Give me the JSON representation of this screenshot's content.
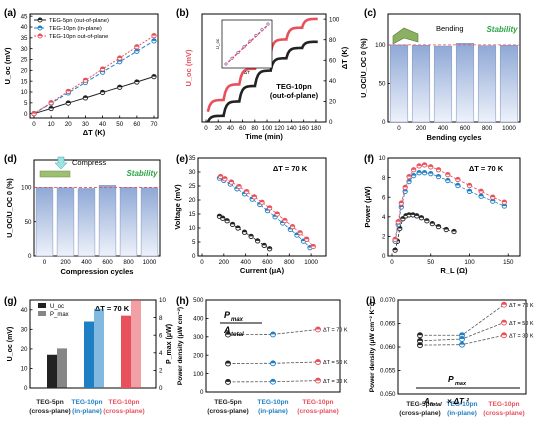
{
  "colors": {
    "black": "#222222",
    "blue": "#1f7fc4",
    "red": "#e8505b",
    "grey": "#bdbdbd",
    "bar_top": "#8fa8d6",
    "bar_bot": "#eef2fa",
    "area": "#dcdcdc"
  },
  "chart_data": [
    {
      "panel": "(a)",
      "type": "line",
      "xlabel": "ΔT (K)",
      "ylabel": "U_oc (mV)",
      "xlim": [
        0,
        70
      ],
      "ylim": [
        -2,
        46
      ],
      "xticks": [
        0,
        10,
        20,
        30,
        40,
        50,
        60,
        70
      ],
      "yticks": [
        0,
        5,
        10,
        15,
        20,
        25,
        30,
        35,
        40,
        45
      ],
      "series": [
        {
          "name": "TEG-5pn (out-of-plane)",
          "x": [
            0,
            5,
            10,
            15,
            20,
            25,
            30,
            35,
            40,
            45,
            50,
            55,
            60,
            65,
            70
          ],
          "values": [
            0,
            1.2,
            2.4,
            3.7,
            4.9,
            6.1,
            7.3,
            8.5,
            9.8,
            11,
            12.2,
            13.4,
            14.6,
            15.9,
            17.1
          ]
        },
        {
          "name": "TEG-10pn (in-plane)",
          "x": [
            0,
            5,
            10,
            15,
            20,
            25,
            30,
            35,
            40,
            45,
            50,
            55,
            60,
            65,
            70
          ],
          "values": [
            0,
            2.4,
            4.8,
            7.2,
            9.6,
            12,
            14.4,
            16.8,
            19.2,
            21.6,
            24,
            26.4,
            28.8,
            31.2,
            33.6
          ]
        },
        {
          "name": "TEG-10pn out-of-plane",
          "x": [
            0,
            5,
            10,
            15,
            20,
            25,
            30,
            35,
            40,
            45,
            50,
            55,
            60,
            65,
            70
          ],
          "values": [
            0,
            2.6,
            5.1,
            7.7,
            10.3,
            12.9,
            15.4,
            18,
            20.6,
            23.1,
            25.7,
            28.3,
            30.9,
            33.4,
            36
          ]
        }
      ]
    },
    {
      "panel": "(b)",
      "type": "line",
      "xlabel": "Time (min)",
      "ylabel": "U_oc (mV)",
      "y2label": "ΔT (K)",
      "xlim": [
        0,
        190
      ],
      "xticks": [
        0,
        20,
        40,
        60,
        80,
        100,
        120,
        140,
        160,
        180
      ],
      "y2ticks": [
        0,
        20,
        40,
        60,
        80,
        100
      ],
      "annotation": "TEG-10pn\n(out-of-plane)",
      "inset": {
        "xlabel": "ΔT",
        "ylabel": "U_oc",
        "series": [
          {
            "x": [
              0,
              10,
              20,
              30,
              40,
              50,
              60,
              70
            ],
            "values": [
              0,
              5,
              10,
              15,
              20,
              25,
              30,
              35
            ]
          }
        ]
      },
      "series": [
        {
          "name": "U_oc",
          "steps": 7
        },
        {
          "name": "ΔT",
          "steps": 7
        }
      ]
    },
    {
      "panel": "(c)",
      "type": "bar",
      "xlabel": "Bending cycles",
      "ylabel": "U_OC/U_OC 0 (%)",
      "categories": [
        "0",
        "200",
        "400",
        "600",
        "800",
        "1000"
      ],
      "values": [
        100,
        99.5,
        98.5,
        102,
        99,
        99.5
      ],
      "ylim": [
        0,
        140
      ],
      "yticks": [
        0,
        50,
        100
      ],
      "annotations": [
        "Bending",
        "Stability"
      ]
    },
    {
      "panel": "(d)",
      "type": "bar",
      "xlabel": "Compression cycles",
      "ylabel": "U_OC/U_OC 0 (%)",
      "categories": [
        "0",
        "200",
        "400",
        "600",
        "800",
        "1000"
      ],
      "values": [
        100,
        99.5,
        98.5,
        103,
        100,
        99.5
      ],
      "ylim": [
        0,
        140
      ],
      "yticks": [
        0,
        50,
        100
      ],
      "annotations": [
        "Compress",
        "Stability"
      ]
    },
    {
      "panel": "(e)",
      "type": "scatter",
      "title": "ΔT = 70 K",
      "xlabel": "Current (μA)",
      "ylabel": "Voltage (mV)",
      "xlim": [
        0,
        1100
      ],
      "ylim": [
        0,
        35
      ],
      "xticks": [
        0,
        200,
        400,
        600,
        800,
        1000
      ],
      "yticks": [
        0,
        5,
        10,
        15,
        20,
        25,
        30,
        35
      ],
      "series": [
        {
          "name": "TEG-5pn",
          "x": [
            160,
            190,
            230,
            280,
            330,
            390,
            450,
            510,
            570,
            620
          ],
          "values": [
            14.2,
            13.5,
            12.6,
            11.3,
            10,
            8.5,
            7,
            5.4,
            3.8,
            2.6
          ]
        },
        {
          "name": "TEG-10pn in-plane",
          "x": [
            160,
            200,
            260,
            320,
            390,
            460,
            530,
            600,
            670,
            740,
            810,
            870,
            930,
            990
          ],
          "values": [
            27.8,
            27,
            25.7,
            24,
            22.2,
            20.3,
            18.4,
            16.2,
            14,
            11.8,
            9.5,
            7.5,
            5.3,
            3
          ]
        },
        {
          "name": "TEG-10pn out-of-plane",
          "x": [
            170,
            210,
            270,
            340,
            410,
            480,
            550,
            620,
            690,
            760,
            830,
            900,
            960,
            1020
          ],
          "values": [
            28.4,
            27.6,
            26.4,
            24.8,
            23,
            21.1,
            19.2,
            17.2,
            15,
            12.7,
            10.5,
            8.3,
            6,
            3.4
          ]
        }
      ]
    },
    {
      "panel": "(f)",
      "type": "scatter",
      "title": "ΔT = 70 K",
      "xlabel": "R_L (Ω)",
      "ylabel": "Power (μW)",
      "xlim": [
        0,
        160
      ],
      "ylim": [
        0,
        10
      ],
      "xticks": [
        0,
        50,
        100,
        150
      ],
      "yticks": [
        0,
        2,
        4,
        6,
        8,
        10
      ],
      "series": [
        {
          "name": "TEG-5pn",
          "x": [
            4,
            7,
            10,
            14,
            18,
            22,
            27,
            32,
            38,
            45,
            52,
            60,
            70,
            80
          ],
          "values": [
            0.6,
            1.5,
            2.8,
            3.8,
            4.1,
            4.2,
            4.2,
            4.1,
            3.9,
            3.6,
            3.3,
            3,
            2.7,
            2.5
          ]
        },
        {
          "name": "TEG-10pn in-plane",
          "x": [
            4,
            8,
            12,
            17,
            22,
            28,
            35,
            42,
            50,
            60,
            72,
            85,
            100,
            115,
            130,
            145
          ],
          "values": [
            1.5,
            3.2,
            5,
            6.6,
            7.6,
            8.2,
            8.5,
            8.5,
            8.4,
            8.1,
            7.7,
            7.2,
            6.6,
            6.1,
            5.6,
            5.1
          ]
        },
        {
          "name": "TEG-10pn out-of-plane",
          "x": [
            4,
            8,
            12,
            17,
            22,
            28,
            35,
            42,
            50,
            60,
            72,
            85,
            100,
            115,
            130,
            145
          ],
          "values": [
            1.7,
            3.5,
            5.4,
            7,
            8.1,
            8.8,
            9.2,
            9.3,
            9.1,
            8.8,
            8.3,
            7.8,
            7.2,
            6.6,
            6,
            5.5
          ]
        }
      ]
    },
    {
      "panel": "(g)",
      "type": "bar",
      "title": "ΔT = 70 K",
      "ylabel": "U_oc (mV)",
      "y2label": "P_max (μW)",
      "categories": [
        "TEG-5pn\n(cross-plane)",
        "TEG-10pn\n(in-plane)",
        "TEG-10pn\n(cross-plane)"
      ],
      "yticks": [
        0,
        10,
        20,
        30,
        40
      ],
      "y2ticks": [
        0,
        2,
        4,
        6,
        8,
        10
      ],
      "series": [
        {
          "name": "U_oc",
          "values": [
            17,
            34,
            37
          ]
        },
        {
          "name": "P_max",
          "values": [
            4.5,
            9,
            10
          ]
        }
      ]
    },
    {
      "panel": "(h)",
      "type": "scatter",
      "ylabel": "Power density (μW cm⁻²)",
      "categories": [
        "TEG-5pn\n(cross-plane)",
        "TEG-10pn\n(in-plane)",
        "TEG-10pn\n(cross-plane)"
      ],
      "ylim": [
        0,
        500
      ],
      "yticks": [
        0,
        100,
        200,
        300,
        400,
        500
      ],
      "annotation": "P_max / A_total",
      "series": [
        {
          "name": "ΔT = 70 K",
          "values": [
            312,
            313,
            340
          ]
        },
        {
          "name": "ΔT = 50 K",
          "values": [
            155,
            156,
            163
          ]
        },
        {
          "name": "ΔT = 30 K",
          "values": [
            55,
            56,
            62
          ]
        }
      ]
    },
    {
      "panel": "(i)",
      "type": "scatter",
      "ylabel": "Power density (μW cm⁻² K⁻²)",
      "categories": [
        "TEG-5pn\n(cross-plane)",
        "TEG-10pn\n(in-plane)",
        "TEG-10pn\n(cross-plane)"
      ],
      "ylim": [
        0.05,
        0.07
      ],
      "yticks": [
        0.05,
        0.055,
        0.06,
        0.065,
        0.07
      ],
      "annotation": "P_max / (A_total × ΔT²)",
      "series": [
        {
          "name": "ΔT = 70 K",
          "values": [
            0.0625,
            0.0625,
            0.069
          ]
        },
        {
          "name": "ΔT = 50 K",
          "values": [
            0.0613,
            0.0617,
            0.0652
          ]
        },
        {
          "name": "ΔT = 30 K",
          "values": [
            0.0604,
            0.0605,
            0.0625
          ]
        }
      ]
    }
  ]
}
